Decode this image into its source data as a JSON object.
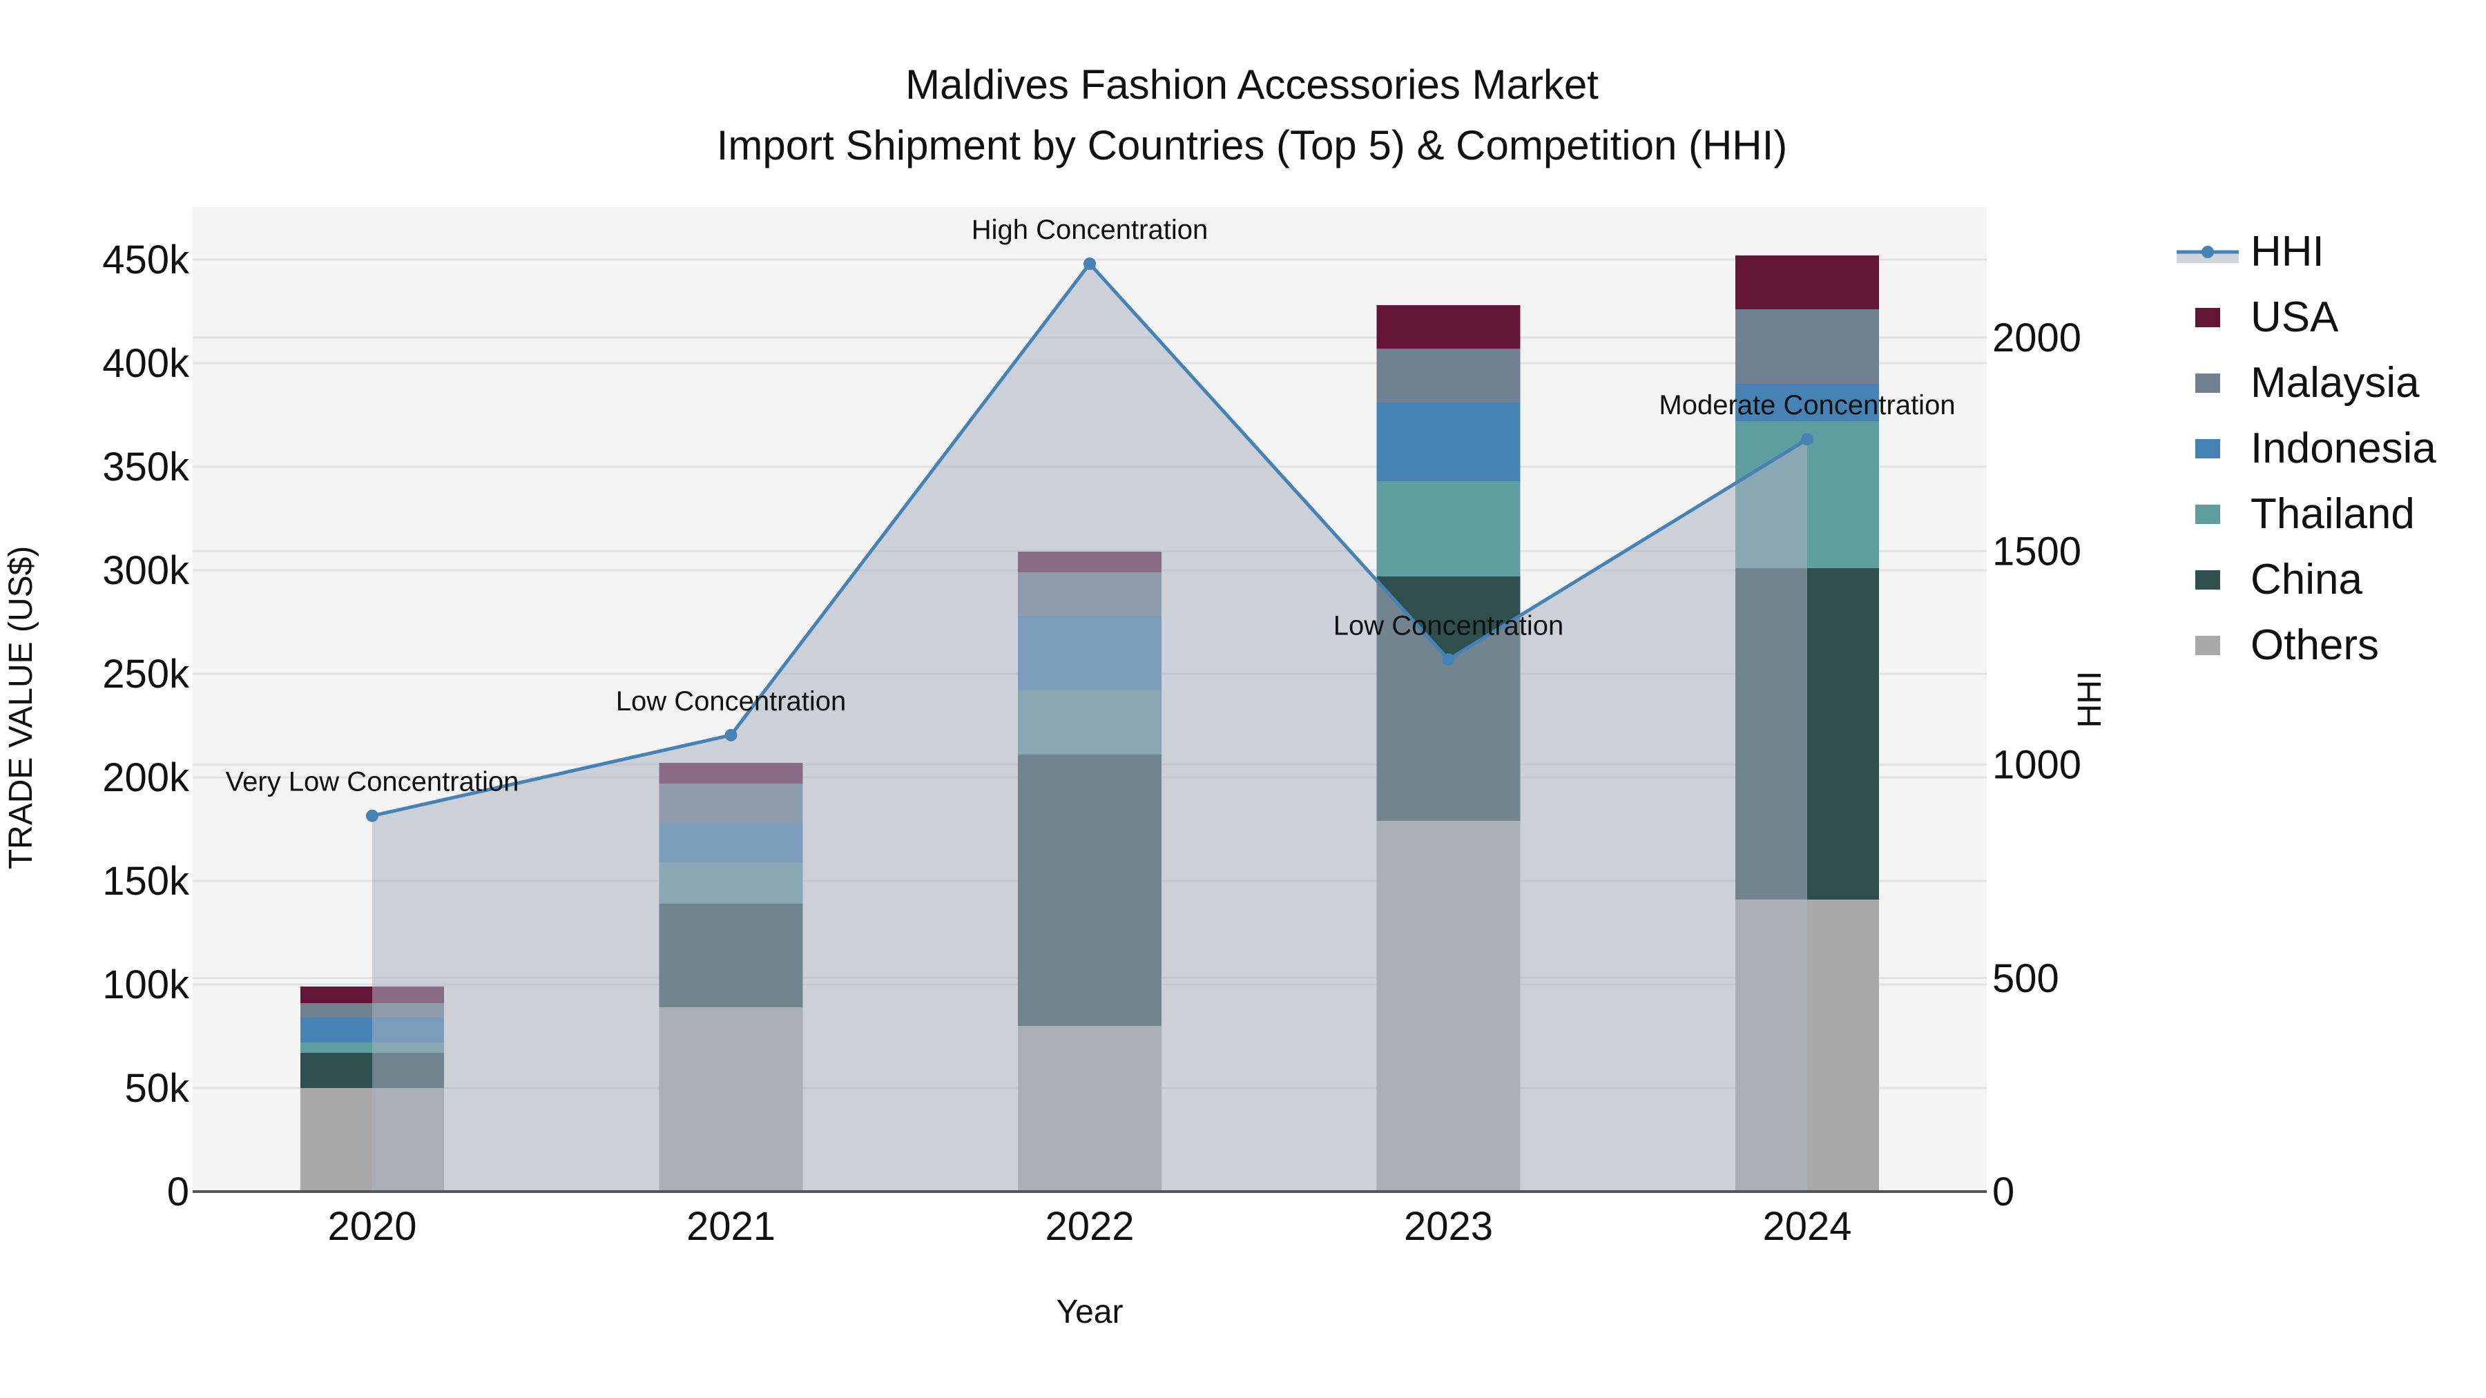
{
  "title": {
    "line1": "Maldives Fashion Accessories Market",
    "line2": "Import Shipment by Countries (Top 5) & Competition (HHI)"
  },
  "axes": {
    "x_title": "Year",
    "y_left_title": "TRADE VALUE (US$)",
    "y_right_title": "HHI",
    "y_left_ticks": [
      "0",
      "50k",
      "100k",
      "150k",
      "200k",
      "250k",
      "300k",
      "350k",
      "400k",
      "450k"
    ],
    "y_right_ticks": [
      "0",
      "500",
      "1000",
      "1500",
      "2000"
    ]
  },
  "legend": [
    {
      "label": "HHI",
      "type": "line",
      "color": "#4682b4"
    },
    {
      "label": "USA",
      "type": "box",
      "color": "#631535"
    },
    {
      "label": "Malaysia",
      "type": "box",
      "color": "#708090"
    },
    {
      "label": "Indonesia",
      "type": "box",
      "color": "#4682b4"
    },
    {
      "label": "Thailand",
      "type": "box",
      "color": "#5f9ea0"
    },
    {
      "label": "China",
      "type": "box",
      "color": "#2f4f4f"
    },
    {
      "label": "Others",
      "type": "box",
      "color": "#a9a9a9"
    }
  ],
  "colors": {
    "plot_bg": "#f4f4f4",
    "grid": "#e2e2e2",
    "hhi_line": "#4682b4",
    "hhi_fill": "rgba(170,178,194,0.55)"
  },
  "chart_data": {
    "type": "bar",
    "stacked": true,
    "title": "Maldives Fashion Accessories Market — Import Shipment by Countries (Top 5) & Competition (HHI)",
    "xlabel": "Year",
    "ylabel": "TRADE VALUE (US$)",
    "y2label": "HHI",
    "ylim": [
      0,
      475000
    ],
    "y2lim": [
      0,
      2290
    ],
    "categories": [
      "2020",
      "2021",
      "2022",
      "2023",
      "2024"
    ],
    "series": [
      {
        "name": "Others",
        "color": "#a9a9a9",
        "values": [
          50000,
          89000,
          80000,
          179000,
          141000
        ]
      },
      {
        "name": "China",
        "color": "#2f4f4f",
        "values": [
          17000,
          50000,
          131000,
          118000,
          160000
        ]
      },
      {
        "name": "Thailand",
        "color": "#5f9ea0",
        "values": [
          5000,
          20000,
          31000,
          46000,
          71000
        ]
      },
      {
        "name": "Indonesia",
        "color": "#4682b4",
        "values": [
          12000,
          19000,
          36000,
          38000,
          18000
        ]
      },
      {
        "name": "Malaysia",
        "color": "#708090",
        "values": [
          7000,
          19000,
          21000,
          26000,
          36000
        ]
      },
      {
        "name": "USA",
        "color": "#631535",
        "values": [
          8000,
          10000,
          10000,
          21000,
          26000
        ]
      }
    ],
    "line_series": {
      "name": "HHI",
      "axis": "right",
      "fill": "tozeroy",
      "values": [
        880,
        1069,
        2173,
        1246,
        1762
      ]
    },
    "annotations": [
      {
        "category": "2020",
        "text": "Very Low Concentration"
      },
      {
        "category": "2021",
        "text": "Low Concentration"
      },
      {
        "category": "2022",
        "text": "High Concentration"
      },
      {
        "category": "2023",
        "text": "Low Concentration"
      },
      {
        "category": "2024",
        "text": "Moderate Concentration"
      }
    ],
    "legend_position": "right",
    "grid": true
  }
}
